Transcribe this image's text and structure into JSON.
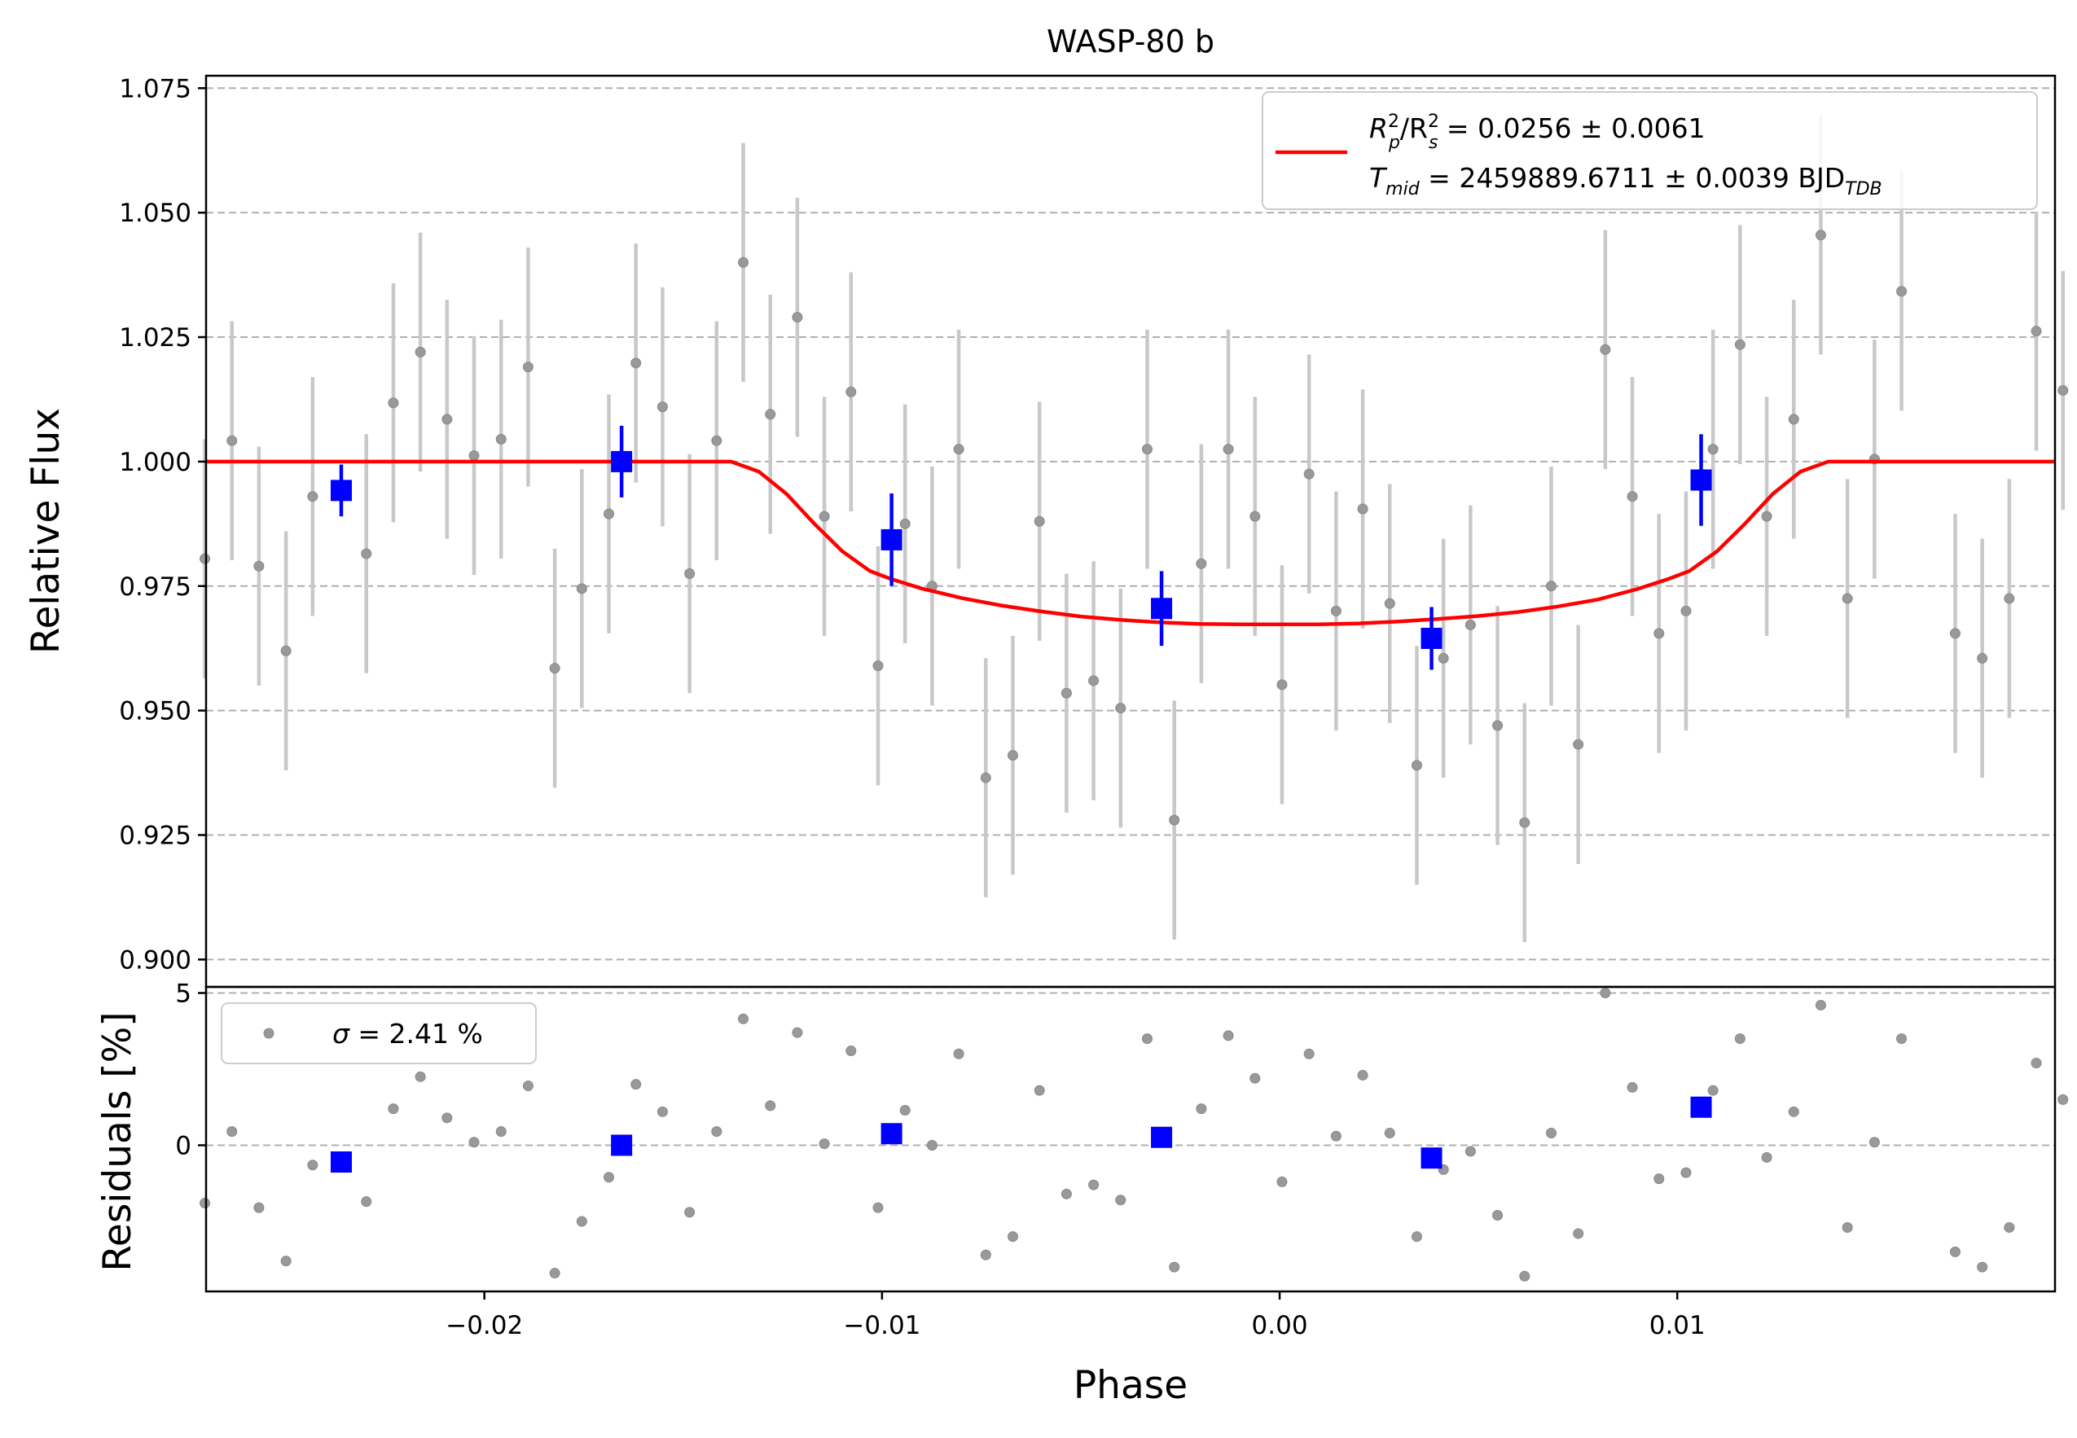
{
  "chart_data": [
    {
      "type": "scatter",
      "title": "WASP-80 b",
      "xlabel": "",
      "ylabel": "Relative Flux",
      "xlim": [
        -0.027,
        0.0195
      ],
      "ylim": [
        0.8945,
        1.0775
      ],
      "x_ticks": [
        -0.02,
        -0.01,
        0.0,
        0.01
      ],
      "y_ticks": [
        0.9,
        0.925,
        0.95,
        0.975,
        1.0,
        1.025,
        1.05,
        1.075
      ],
      "y_tick_labels": [
        "0.900",
        "0.925",
        "0.950",
        "0.975",
        "1.000",
        "1.025",
        "1.050",
        "1.075"
      ],
      "grid": "horizontal dashed",
      "legend_position": "top-right",
      "legend": {
        "line1": {
          "a": "R",
          "a_sup": "2",
          "a_sub": "p",
          "slash": "/R",
          "b_sup": "2",
          "b_sub": "s",
          "rest": " = 0.0256 ± 0.0061"
        },
        "line2": {
          "a": "T",
          "a_sub": "mid",
          "rest": " = 2459889.6711 ± 0.0039 BJD",
          "rest_sub": "TDB"
        }
      },
      "colors": {
        "data": "#999999",
        "errorbar": "#c8c8c8",
        "binned": "#0000ff",
        "model": "#ff0000",
        "grid": "#b0b0b0"
      },
      "raw_x": [
        -0.02703,
        -0.02635,
        -0.02567,
        -0.02499,
        -0.02432,
        -0.02297,
        -0.02229,
        -0.02161,
        -0.02094,
        -0.02026,
        -0.01958,
        -0.0189,
        -0.01823,
        -0.01755,
        -0.01687,
        -0.01619,
        -0.01552,
        -0.01484,
        -0.01416,
        -0.01349,
        -0.01281,
        -0.01213,
        -0.01145,
        -0.01078,
        -0.0101,
        -0.00942,
        -0.00874,
        -0.00807,
        -0.00739,
        -0.00671,
        -0.00604,
        -0.00536,
        -0.00468,
        -0.004,
        -0.00333,
        -0.00265,
        -0.00197,
        -0.00129,
        -0.00062,
        6e-05,
        0.00074,
        0.00142,
        0.00209,
        0.00277,
        0.00345,
        0.00412,
        0.0048,
        0.00548,
        0.00616,
        0.00683,
        0.00751,
        0.00819,
        0.00887,
        0.00954,
        0.01022,
        0.0109,
        0.01158,
        0.01225,
        0.01293,
        0.01361,
        0.01428,
        0.01496,
        0.01564,
        0.01699,
        0.01767,
        0.01835,
        0.01903,
        0.0197
      ],
      "raw_y": [
        0.9805,
        1.0042,
        0.979,
        0.962,
        0.993,
        0.9815,
        1.0118,
        1.022,
        1.0085,
        1.0012,
        1.0045,
        1.019,
        0.9585,
        0.9745,
        0.9895,
        1.0198,
        1.011,
        0.9775,
        1.0042,
        1.04,
        1.0095,
        1.029,
        0.989,
        1.014,
        0.959,
        0.9875,
        0.975,
        1.0025,
        0.9365,
        0.941,
        0.988,
        0.9535,
        0.956,
        0.9505,
        1.0025,
        0.928,
        0.9795,
        1.0025,
        0.989,
        0.9552,
        0.9975,
        0.97,
        0.9905,
        0.9715,
        0.939,
        0.9605,
        0.9672,
        0.947,
        0.9275,
        0.975,
        0.9432,
        1.0225,
        0.993,
        0.9655,
        0.97,
        1.0025,
        1.0235,
        0.989,
        1.0085,
        1.0455,
        0.9725,
        1.0005,
        1.0342,
        0.9655,
        0.9605,
        0.9725,
        1.0262,
        1.0143
      ],
      "raw_err": 0.024,
      "binned_x": [
        -0.0236,
        -0.01655,
        -0.00976,
        -0.00297,
        0.00382,
        0.0106
      ],
      "binned_y": [
        0.9942,
        1.0,
        0.9843,
        0.9705,
        0.9645,
        0.9963
      ],
      "binned_err": [
        0.0052,
        0.0072,
        0.0093,
        0.0075,
        0.0063,
        0.0092
      ],
      "model_x": [
        -0.027,
        -0.0138,
        -0.0131,
        -0.0124,
        -0.0117,
        -0.011,
        -0.0103,
        -0.0098,
        -0.009,
        -0.008,
        -0.007,
        -0.006,
        -0.005,
        -0.004,
        -0.003,
        -0.002,
        -0.001,
        0.0,
        0.001,
        0.002,
        0.003,
        0.004,
        0.005,
        0.006,
        0.007,
        0.008,
        0.009,
        0.0098,
        0.0103,
        0.011,
        0.0117,
        0.0124,
        0.0131,
        0.0138,
        0.0195
      ],
      "model_y": [
        1.0,
        1.0,
        0.998,
        0.9935,
        0.9875,
        0.982,
        0.978,
        0.9765,
        0.9745,
        0.9726,
        0.9711,
        0.9699,
        0.9689,
        0.9682,
        0.9677,
        0.9674,
        0.9673,
        0.9673,
        0.9673,
        0.9675,
        0.9679,
        0.9684,
        0.969,
        0.9698,
        0.9709,
        0.9723,
        0.9744,
        0.9765,
        0.978,
        0.982,
        0.9875,
        0.9935,
        0.998,
        1.0,
        1.0
      ]
    },
    {
      "type": "scatter",
      "xlabel": "Phase",
      "ylabel": "Residuals [%]",
      "xlim": [
        -0.027,
        0.0195
      ],
      "ylim": [
        -4.8,
        5.2
      ],
      "x_ticks": [
        -0.02,
        -0.01,
        0.0,
        0.01
      ],
      "x_tick_labels": [
        "−0.02",
        "−0.01",
        "0.00",
        "0.01"
      ],
      "y_ticks": [
        0,
        5
      ],
      "y_tick_labels": [
        "0",
        "5"
      ],
      "grid": "horizontal dashed",
      "legend_position": "top-left",
      "legend": {
        "sigma": "σ",
        "rest": " = 2.41 %"
      },
      "raw_y": [
        -1.9,
        0.45,
        -2.05,
        -3.8,
        -0.65,
        -1.85,
        1.2,
        2.25,
        0.9,
        0.1,
        0.45,
        1.95,
        -4.2,
        -2.5,
        -1.05,
        2.0,
        1.1,
        -2.2,
        0.45,
        4.15,
        1.3,
        3.7,
        0.05,
        3.1,
        -2.05,
        1.15,
        0.0,
        3.0,
        -3.6,
        -3.0,
        1.8,
        -1.6,
        -1.3,
        -1.8,
        3.5,
        -4.0,
        1.2,
        3.6,
        2.2,
        -1.2,
        3.0,
        0.3,
        2.3,
        0.4,
        -3.0,
        -0.8,
        -0.2,
        -2.3,
        -4.3,
        0.4,
        -2.9,
        5.0,
        1.9,
        -1.1,
        -0.9,
        1.8,
        3.5,
        -0.4,
        1.1,
        4.6,
        -2.7,
        0.1,
        3.5,
        -3.5,
        -4.0,
        -2.7,
        2.7,
        1.5
      ],
      "binned_y": [
        -0.55,
        0.0,
        0.38,
        0.26,
        -0.42,
        1.25
      ]
    }
  ]
}
